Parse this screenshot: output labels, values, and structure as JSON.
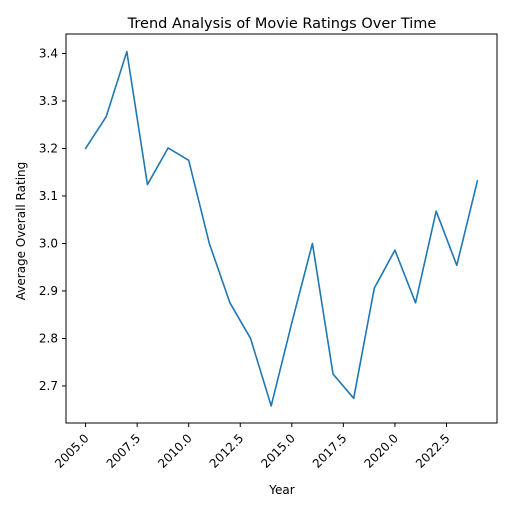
{
  "chart_data": {
    "type": "line",
    "title": "Trend Analysis of Movie Ratings Over Time",
    "xlabel": "Year",
    "ylabel": "Average Overall Rating",
    "xlim": [
      2004.05,
      2024.95
    ],
    "ylim": [
      2.622,
      3.441
    ],
    "x_ticks": [
      2005.0,
      2007.5,
      2010.0,
      2012.5,
      2015.0,
      2017.5,
      2020.0,
      2022.5
    ],
    "x_tick_labels": [
      "2005.0",
      "2007.5",
      "2010.0",
      "2012.5",
      "2015.0",
      "2017.5",
      "2020.0",
      "2022.5"
    ],
    "y_ticks": [
      2.7,
      2.8,
      2.9,
      3.0,
      3.1,
      3.2,
      3.3,
      3.4
    ],
    "y_tick_labels": [
      "2.7",
      "2.8",
      "2.9",
      "3.0",
      "3.1",
      "3.2",
      "3.3",
      "3.4"
    ],
    "grid": false,
    "series": [
      {
        "color": "#1f77b4",
        "x": [
          2005,
          2006,
          2007,
          2008,
          2009,
          2010,
          2011,
          2012,
          2013,
          2014,
          2015,
          2016,
          2017,
          2018,
          2019,
          2020,
          2021,
          2022,
          2023,
          2024
        ],
        "values": [
          3.2,
          3.267,
          3.404,
          3.124,
          3.201,
          3.175,
          3.0,
          2.875,
          2.8,
          2.658,
          2.833,
          3.0,
          2.725,
          2.674,
          2.906,
          2.986,
          2.875,
          3.068,
          2.954,
          3.132
        ]
      }
    ]
  }
}
